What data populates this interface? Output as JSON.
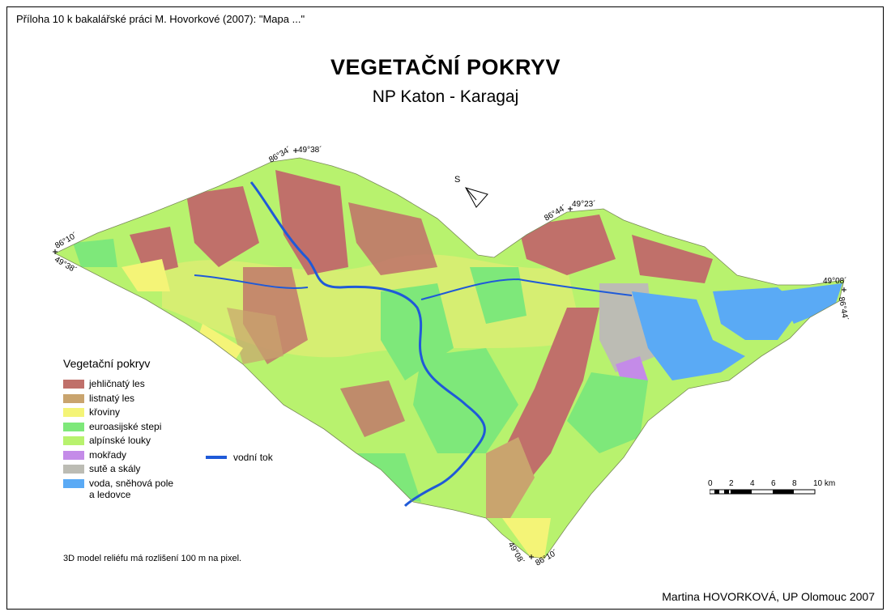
{
  "header_note": "Příloha 10 k bakalářské práci M. Hovorkové (2007): \"Mapa ...\"",
  "title": "VEGETAČNÍ POKRYV",
  "subtitle": "NP Katon - Karagaj",
  "north_label": "S",
  "coordinates": {
    "nw_lon": "86°34´",
    "nw_lat": "49°38´",
    "ne_lon": "86°44´",
    "ne_lat": "49°23´",
    "w_lon": "86°10´",
    "w_lat": "49°38´",
    "e_lat": "49°08´",
    "e_lon": "86°44´",
    "s_lat": "49°08´",
    "s_lon": "86°10´"
  },
  "legend": {
    "title": "Vegetační pokryv",
    "items": [
      {
        "label": "jehličnatý les",
        "color": "#c0706a"
      },
      {
        "label": "listnatý les",
        "color": "#c9a46e"
      },
      {
        "label": "křoviny",
        "color": "#f4f477"
      },
      {
        "label": "euroasijské stepi",
        "color": "#7ee87a"
      },
      {
        "label": "alpínské louky",
        "color": "#b8f26e"
      },
      {
        "label": "mokřady",
        "color": "#c48be8"
      },
      {
        "label": "sutě a skály",
        "color": "#bcbcb4"
      },
      {
        "label": "voda, sněhová pole",
        "label2": "a ledovce",
        "color": "#5aaaf5"
      }
    ]
  },
  "river_legend": {
    "label": "vodní tok",
    "color": "#1f5ad8"
  },
  "scale_bar": {
    "ticks": [
      "0",
      "2",
      "4",
      "6",
      "8",
      "10 km"
    ]
  },
  "resolution_note": "3D model reliéfu má rozlišení 100 m na pixel.",
  "author": "Martina HOVORKOVÁ, UP Olomouc 2007"
}
